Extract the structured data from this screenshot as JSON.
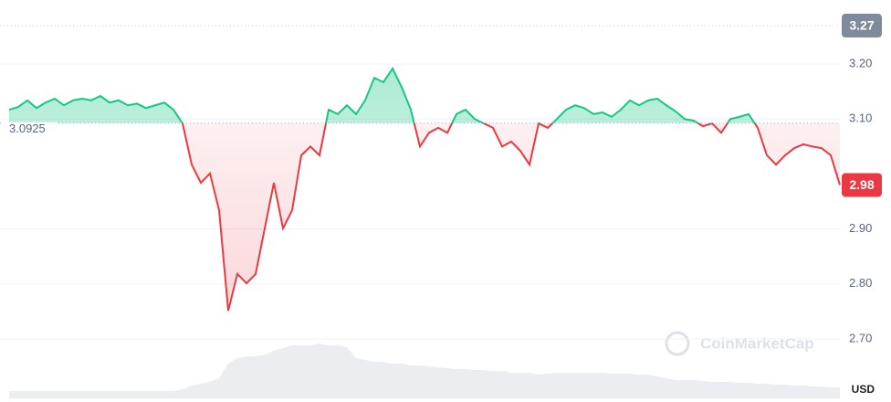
{
  "chart_data": {
    "type": "line",
    "values": [
      3.117,
      3.122,
      3.134,
      3.12,
      3.13,
      3.137,
      3.125,
      3.134,
      3.137,
      3.134,
      3.142,
      3.13,
      3.134,
      3.125,
      3.128,
      3.12,
      3.125,
      3.13,
      3.117,
      3.092,
      3.017,
      2.984,
      3.001,
      2.934,
      2.751,
      2.818,
      2.801,
      2.818,
      2.901,
      2.984,
      2.901,
      2.934,
      3.034,
      3.05,
      3.034,
      3.117,
      3.109,
      3.125,
      3.109,
      3.134,
      3.175,
      3.167,
      3.192,
      3.158,
      3.117,
      3.05,
      3.075,
      3.084,
      3.075,
      3.109,
      3.117,
      3.1,
      3.092,
      3.084,
      3.05,
      3.059,
      3.042,
      3.017,
      3.092,
      3.084,
      3.1,
      3.117,
      3.125,
      3.12,
      3.109,
      3.112,
      3.104,
      3.117,
      3.134,
      3.125,
      3.134,
      3.137,
      3.125,
      3.114,
      3.1,
      3.097,
      3.087,
      3.092,
      3.075,
      3.1,
      3.104,
      3.109,
      3.084,
      3.034,
      3.017,
      3.034,
      3.047,
      3.054,
      3.05,
      3.047,
      3.034,
      2.98
    ],
    "volume": [
      8,
      8,
      8,
      8,
      8,
      8,
      8,
      8,
      8,
      8,
      8,
      8,
      8,
      8,
      8,
      8,
      8,
      8,
      8,
      10,
      14,
      16,
      18,
      22,
      38,
      44,
      46,
      46,
      48,
      52,
      55,
      58,
      58,
      58,
      60,
      58,
      58,
      56,
      44,
      42,
      40,
      40,
      38,
      38,
      36,
      36,
      35,
      34,
      33,
      32,
      32,
      31,
      31,
      30,
      30,
      28,
      28,
      28,
      26,
      27,
      28,
      28,
      28,
      28,
      28,
      28,
      27,
      27,
      27,
      26,
      26,
      24,
      22,
      20,
      20,
      20,
      19,
      18,
      18,
      18,
      17,
      17,
      16,
      16,
      15,
      15,
      14,
      14,
      13,
      13,
      12,
      12
    ],
    "baseline": 3.0925,
    "high": 3.27,
    "current": 2.98,
    "ylim": [
      2.6,
      3.3
    ],
    "yticks": [
      {
        "value": 2.7,
        "label": "2.70"
      },
      {
        "value": 2.8,
        "label": "2.80"
      },
      {
        "value": 2.9,
        "label": "2.90"
      },
      {
        "value": 3.1,
        "label": "3.10"
      },
      {
        "value": 3.2,
        "label": "3.20"
      }
    ],
    "up_color": "#16c784",
    "down_color": "#ea3943",
    "grid": true,
    "currency": "USD",
    "watermark": "CoinMarketCap"
  }
}
